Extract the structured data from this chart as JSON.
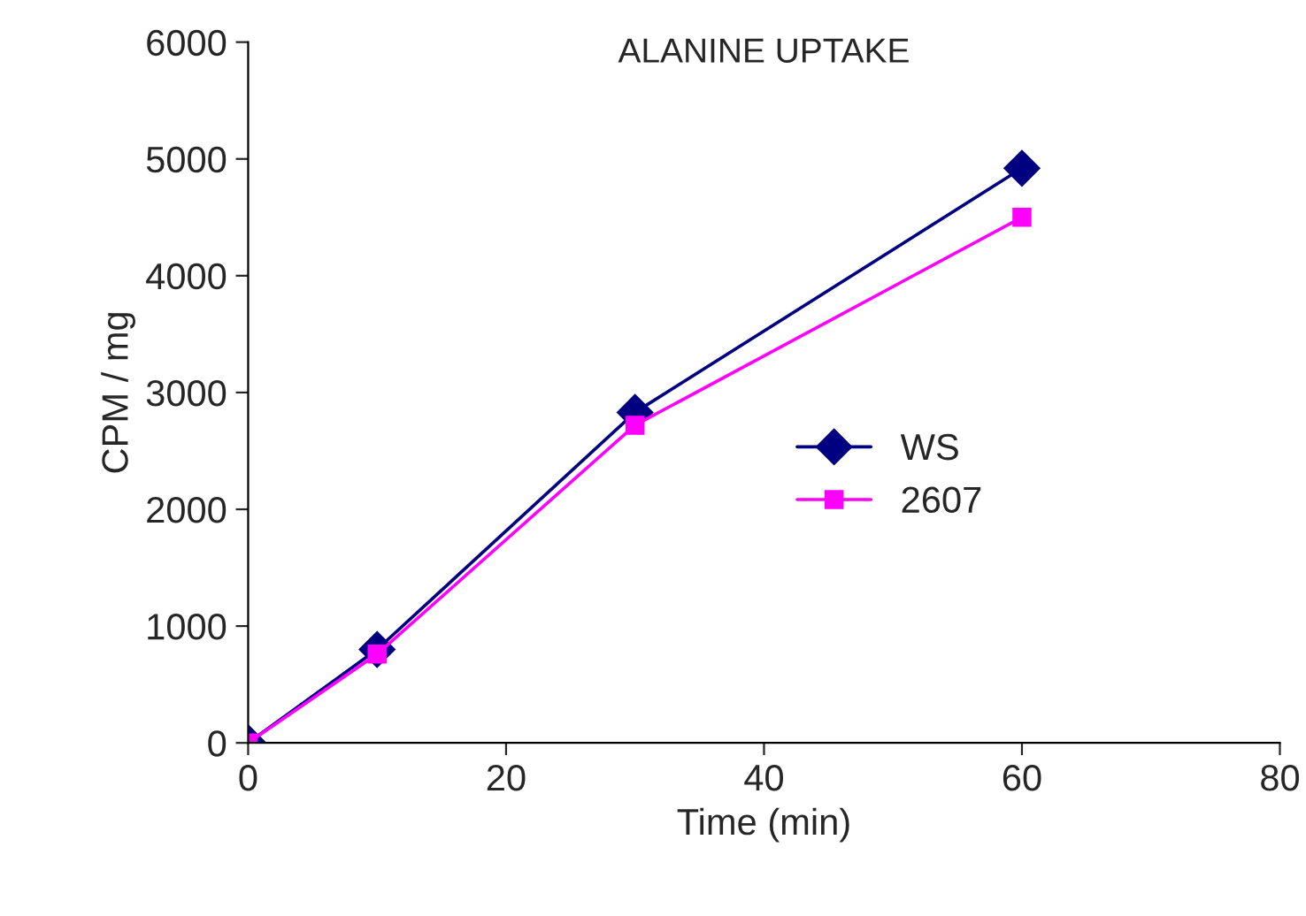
{
  "chart_data": {
    "type": "line",
    "title": "ALANINE UPTAKE",
    "xlabel": "Time (min)",
    "ylabel": "CPM / mg",
    "x": [
      0,
      10,
      30,
      60
    ],
    "series": [
      {
        "name": "WS",
        "color": "#000080",
        "marker": "diamond",
        "values": [
          0,
          800,
          2830,
          4920
        ]
      },
      {
        "name": "2607",
        "color": "#ff00ff",
        "marker": "square",
        "values": [
          0,
          760,
          2720,
          4500
        ]
      }
    ],
    "xlim": [
      0,
      80
    ],
    "xticks": [
      0,
      20,
      40,
      60,
      80
    ],
    "ylim": [
      0,
      6000
    ],
    "yticks": [
      0,
      1000,
      2000,
      3000,
      4000,
      5000,
      6000
    ],
    "grid": false,
    "legend": "right",
    "line_style": "solid"
  }
}
